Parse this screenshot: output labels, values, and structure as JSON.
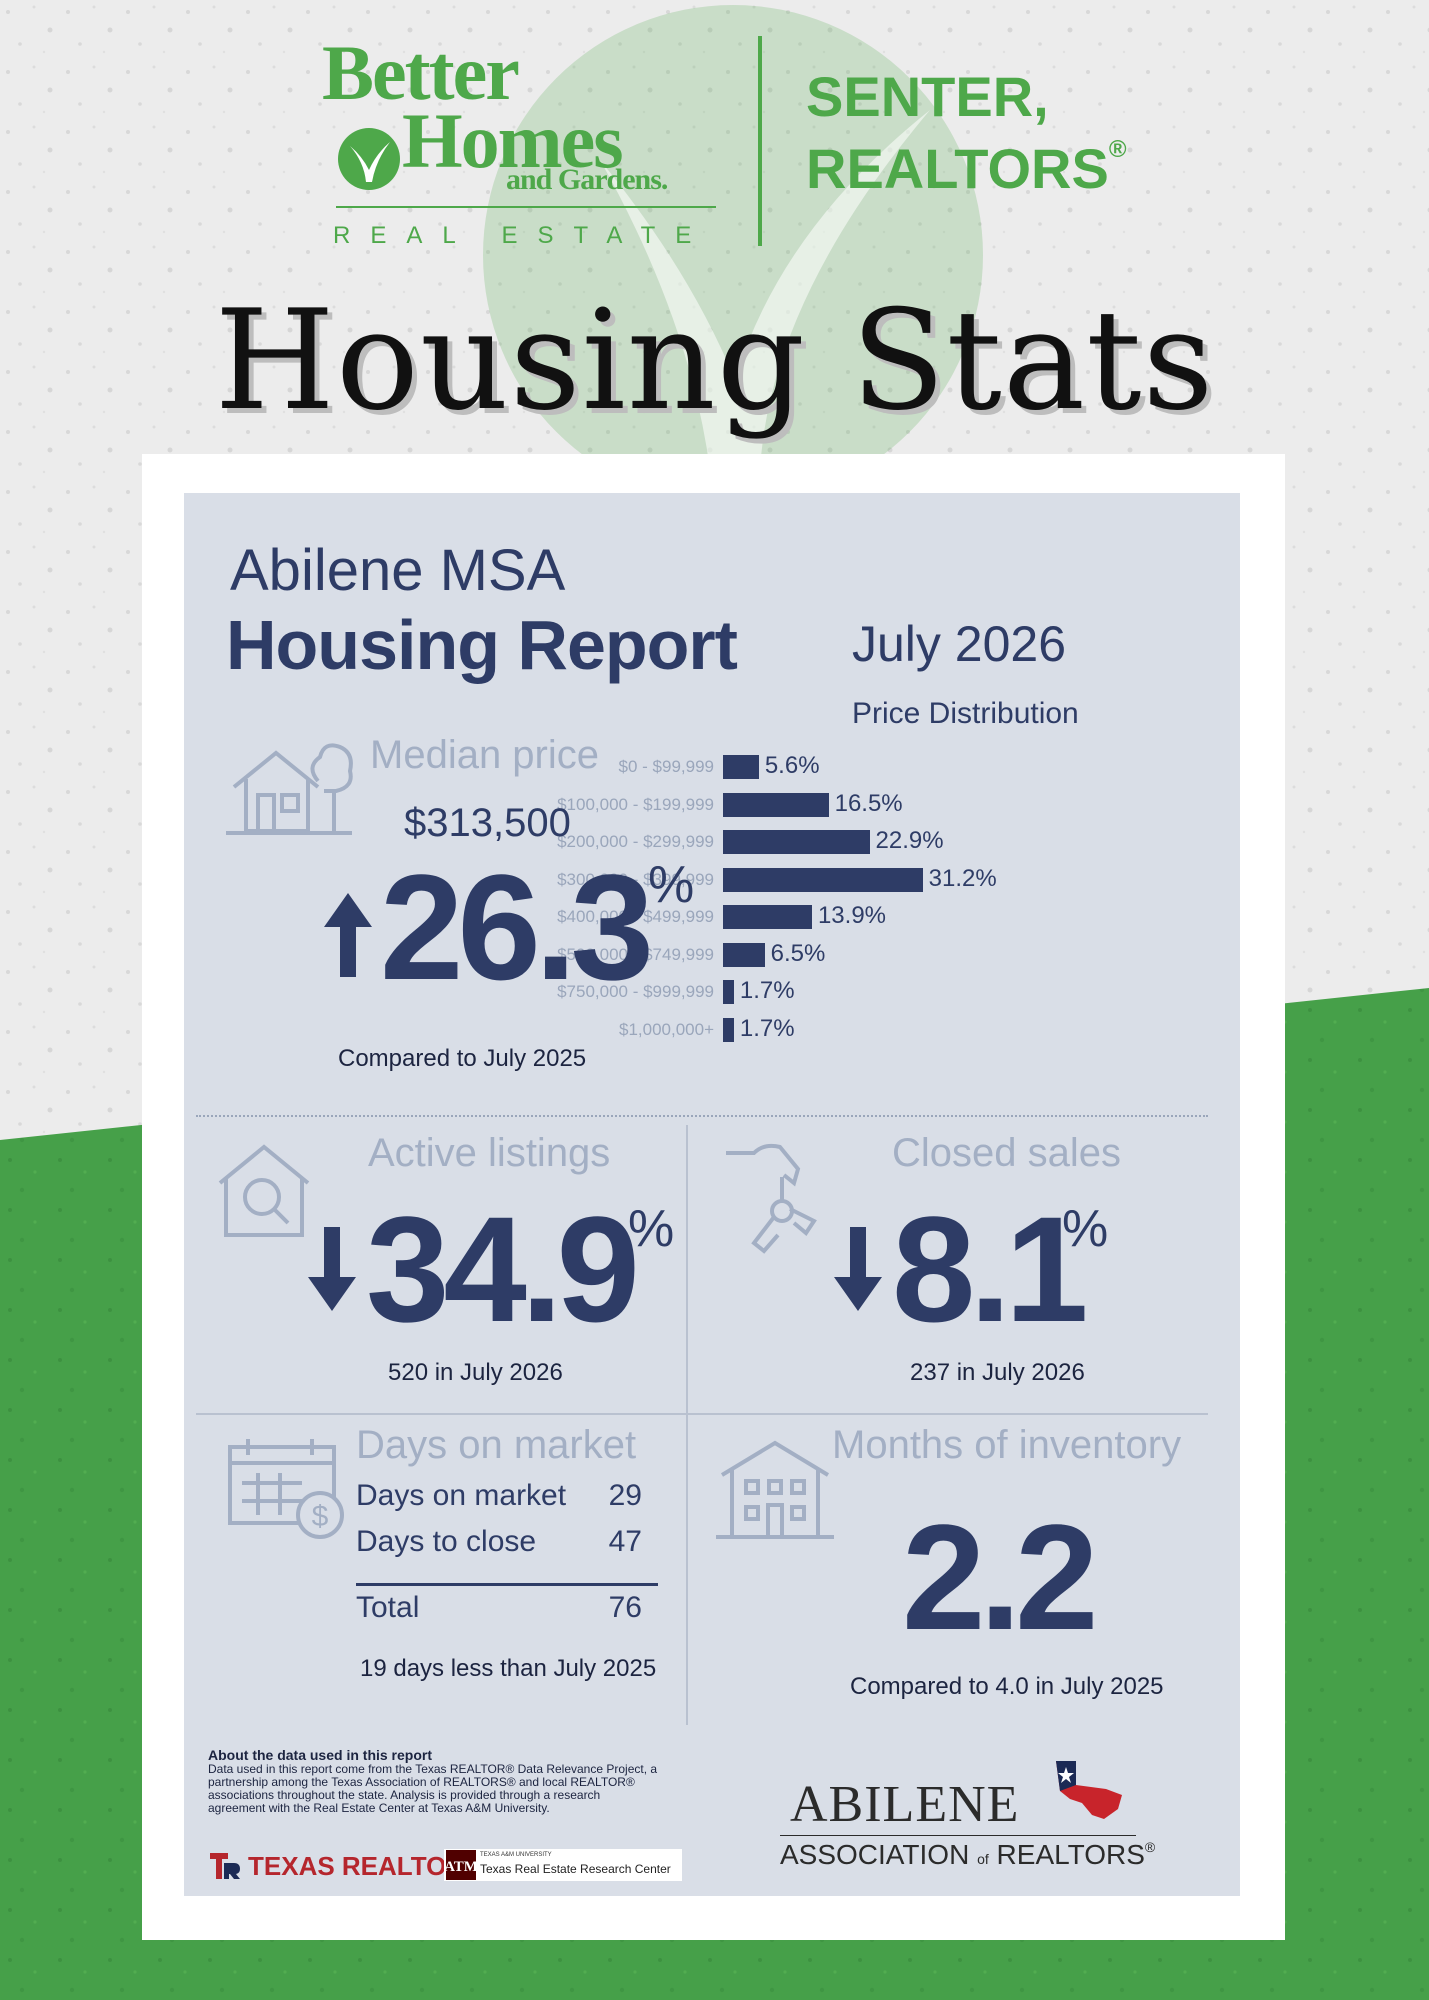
{
  "brand": {
    "bhg_line1": "Better",
    "bhg_line2": "Homes",
    "bhg_line3": "and Gardens.",
    "bhg_sub": "REAL ESTATE",
    "office_line1": "SENTER,",
    "office_line2": "REALTORS",
    "registered": "®",
    "green": "#4ea84a"
  },
  "title": "Housing Stats",
  "report": {
    "region": "Abilene MSA",
    "heading": "Housing Report",
    "period": "July 2026",
    "price_distribution": {
      "title": "Price Distribution",
      "rows": [
        {
          "label": "$0 - $99,999",
          "value": "5.6%"
        },
        {
          "label": "$100,000 - $199,999",
          "value": "16.5%"
        },
        {
          "label": "$200,000 - $299,999",
          "value": "22.9%"
        },
        {
          "label": "$300,000 - $399,999",
          "value": "31.2%"
        },
        {
          "label": "$400,000 - $499,999",
          "value": "13.9%"
        },
        {
          "label": "$500,000 - $749,999",
          "value": "6.5%"
        },
        {
          "label": "$750,000 - $999,999",
          "value": "1.7%"
        },
        {
          "label": "$1,000,000+",
          "value": "1.7%"
        }
      ]
    },
    "median_price": {
      "label": "Median price",
      "value": "$313,500",
      "change": "26.3",
      "pct": "%",
      "caption": "Compared to July 2025",
      "direction": "up"
    },
    "active_listings": {
      "label": "Active listings",
      "change": "34.9",
      "pct": "%",
      "caption": "520 in July 2026",
      "direction": "down"
    },
    "closed_sales": {
      "label": "Closed sales",
      "change": "8.1",
      "pct": "%",
      "caption": "237 in July 2026",
      "direction": "down"
    },
    "days_on_market": {
      "label": "Days on market",
      "rows": [
        {
          "name": "Days on market",
          "value": "29"
        },
        {
          "name": "Days to close",
          "value": "47"
        }
      ],
      "total_label": "Total",
      "total_value": "76",
      "caption": "19 days less than July 2025"
    },
    "months_inventory": {
      "label": "Months of inventory",
      "value": "2.2",
      "caption": "Compared to 4.0 in July 2025"
    },
    "about": {
      "title": "About the data used in this report",
      "text": "Data used in this report come from the Texas REALTOR® Data Relevance Project, a partnership among the Texas Association of REALTORS® and local REALTOR® associations throughout the state. Analysis is provided through a research agreement with the Real Estate Center at Texas A&M University."
    },
    "logos": {
      "texas_realtors": "TEXAS REALTORS",
      "tamu_small": "TEXAS A&M UNIVERSITY",
      "tamu_center": "Texas Real Estate Research Center",
      "abilene_line1": "ABILENE",
      "abilene_line2": "ASSOCIATION",
      "abilene_of": "of",
      "abilene_line3": "REALTORS"
    }
  }
}
